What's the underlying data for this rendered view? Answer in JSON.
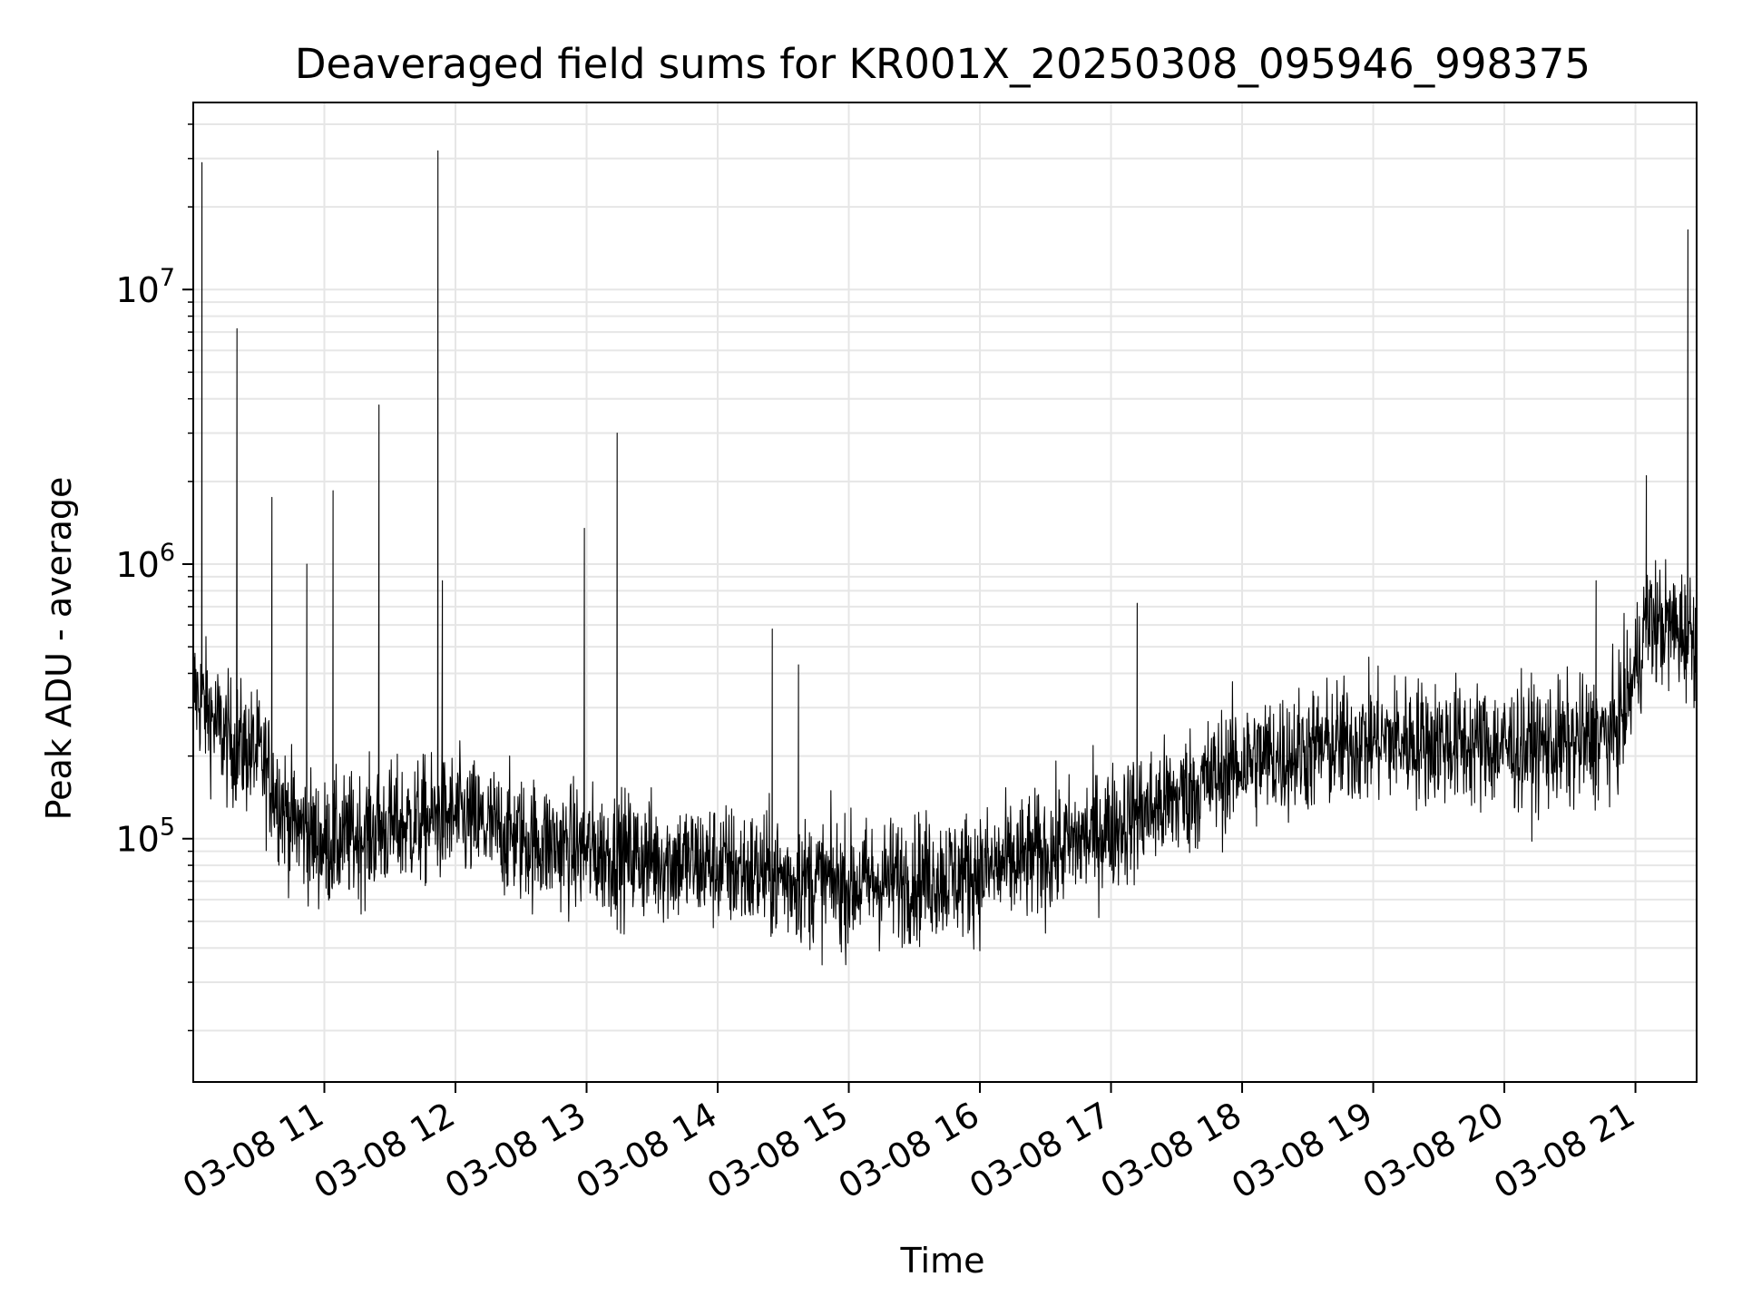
{
  "chart_data": {
    "type": "line",
    "title": "Deaveraged field sums for KR001X_20250308_095946_998375",
    "xlabel": "Time",
    "ylabel": "Peak ADU - average",
    "yscale": "log",
    "ylim": [
      13000,
      48000000
    ],
    "xlim": [
      "2025-03-08 10:00",
      "2025-03-08 21:28"
    ],
    "x_ticks": [
      {
        "label": "03-08 11",
        "value": "2025-03-08 11:00"
      },
      {
        "label": "03-08 12",
        "value": "2025-03-08 12:00"
      },
      {
        "label": "03-08 13",
        "value": "2025-03-08 13:00"
      },
      {
        "label": "03-08 14",
        "value": "2025-03-08 14:00"
      },
      {
        "label": "03-08 15",
        "value": "2025-03-08 15:00"
      },
      {
        "label": "03-08 16",
        "value": "2025-03-08 16:00"
      },
      {
        "label": "03-08 17",
        "value": "2025-03-08 17:00"
      },
      {
        "label": "03-08 18",
        "value": "2025-03-08 18:00"
      },
      {
        "label": "03-08 19",
        "value": "2025-03-08 19:00"
      },
      {
        "label": "03-08 20",
        "value": "2025-03-08 20:00"
      },
      {
        "label": "03-08 21",
        "value": "2025-03-08 21:00"
      }
    ],
    "y_ticks": [
      {
        "base": "10",
        "exp": "5",
        "value": 100000
      },
      {
        "base": "10",
        "exp": "6",
        "value": 1000000
      },
      {
        "base": "10",
        "exp": "7",
        "value": 10000000
      }
    ],
    "grid": true,
    "line_color": "#000000",
    "grid_color": "#e6e6e6",
    "baseline": [
      [
        "2025-03-08 10:00",
        350000
      ],
      [
        "2025-03-08 10:15",
        230000
      ],
      [
        "2025-03-08 10:30",
        200000
      ],
      [
        "2025-03-08 10:45",
        115000
      ],
      [
        "2025-03-08 11:00",
        95000
      ],
      [
        "2025-03-08 11:30",
        110000
      ],
      [
        "2025-03-08 12:00",
        120000
      ],
      [
        "2025-03-08 12:30",
        100000
      ],
      [
        "2025-03-08 13:00",
        90000
      ],
      [
        "2025-03-08 13:30",
        85000
      ],
      [
        "2025-03-08 14:00",
        80000
      ],
      [
        "2025-03-08 14:30",
        72000
      ],
      [
        "2025-03-08 15:00",
        68000
      ],
      [
        "2025-03-08 15:30",
        72000
      ],
      [
        "2025-03-08 16:00",
        75000
      ],
      [
        "2025-03-08 16:30",
        88000
      ],
      [
        "2025-03-08 17:00",
        110000
      ],
      [
        "2025-03-08 17:30",
        140000
      ],
      [
        "2025-03-08 18:00",
        190000
      ],
      [
        "2025-03-08 18:30",
        210000
      ],
      [
        "2025-03-08 19:00",
        230000
      ],
      [
        "2025-03-08 19:30",
        225000
      ],
      [
        "2025-03-08 20:00",
        215000
      ],
      [
        "2025-03-08 20:30",
        220000
      ],
      [
        "2025-03-08 20:50",
        240000
      ],
      [
        "2025-03-08 20:58",
        350000
      ],
      [
        "2025-03-08 21:05",
        620000
      ],
      [
        "2025-03-08 21:28",
        550000
      ]
    ],
    "spikes": [
      [
        "2025-03-08 10:04",
        29000000
      ],
      [
        "2025-03-08 10:20",
        7200000
      ],
      [
        "2025-03-08 10:36",
        1750000
      ],
      [
        "2025-03-08 10:52",
        1000000
      ],
      [
        "2025-03-08 11:04",
        1850000
      ],
      [
        "2025-03-08 11:25",
        3800000
      ],
      [
        "2025-03-08 11:52",
        32000000
      ],
      [
        "2025-03-08 11:54",
        870000
      ],
      [
        "2025-03-08 12:59",
        1350000
      ],
      [
        "2025-03-08 13:14",
        3000000
      ],
      [
        "2025-03-08 14:25",
        580000
      ],
      [
        "2025-03-08 14:37",
        430000
      ],
      [
        "2025-03-08 17:12",
        720000
      ],
      [
        "2025-03-08 20:42",
        870000
      ],
      [
        "2025-03-08 21:05",
        2100000
      ],
      [
        "2025-03-08 21:24",
        16500000
      ]
    ]
  }
}
